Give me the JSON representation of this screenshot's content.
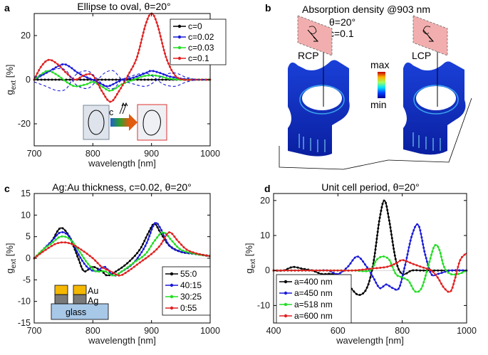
{
  "figure": {
    "panel_b": {
      "letter": "b",
      "title": "Absorption density @903 nm",
      "theta_label": "θ=20°",
      "c_label": "c=0.1",
      "rcp_label": "RCP",
      "lcp_label": "LCP",
      "colorbar_max": "max",
      "colorbar_min": "min"
    }
  },
  "chart_data": [
    {
      "letter": "a",
      "type": "line",
      "title": "Ellipse to oval, θ=20°",
      "xlabel": "wavelength [nm]",
      "ylabel": "g",
      "ylabel_sub": "ext",
      "ylabel_unit": " [%]",
      "xlim": [
        700,
        1000
      ],
      "ylim": [
        -30,
        30
      ],
      "xticks": [
        700,
        800,
        900,
        1000
      ],
      "yticks": [
        -20,
        0,
        20
      ],
      "legend_position": "top-right",
      "series": [
        {
          "name": "c=0",
          "color": "#000000",
          "marker": true,
          "x": [
            700,
            725,
            750,
            775,
            800,
            825,
            850,
            875,
            900,
            925,
            950,
            975,
            1000
          ],
          "y": [
            0,
            0,
            0,
            0,
            0,
            0,
            0,
            0,
            0,
            0,
            0,
            0,
            0
          ]
        },
        {
          "name": "c=0.02",
          "color": "#1a1ad9",
          "marker": true,
          "x": [
            700,
            720,
            740,
            750,
            760,
            775,
            790,
            800,
            815,
            825,
            835,
            850,
            870,
            890,
            900,
            915,
            930,
            950,
            975,
            1000
          ],
          "y": [
            0,
            3,
            6,
            7,
            6,
            3,
            1,
            0,
            -2,
            -3,
            -2,
            0,
            1,
            3,
            4,
            3,
            1.5,
            0.5,
            0,
            0
          ]
        },
        {
          "name": "c=0.03",
          "color": "#22dd22",
          "marker": true,
          "x": [
            700,
            715,
            725,
            740,
            755,
            770,
            790,
            800,
            815,
            830,
            850,
            870,
            885,
            900,
            915,
            930,
            950,
            975,
            1000
          ],
          "y": [
            0,
            3,
            4,
            2,
            -1,
            -3,
            -2,
            -1,
            -3,
            -5,
            -2,
            0,
            1.5,
            2,
            1.5,
            0.5,
            0,
            0,
            0
          ]
        },
        {
          "name": "c=0.1",
          "color": "#e02020",
          "marker": true,
          "x": [
            700,
            712,
            725,
            740,
            755,
            770,
            785,
            800,
            815,
            830,
            845,
            860,
            875,
            890,
            900,
            910,
            925,
            940,
            955,
            975,
            1000
          ],
          "y": [
            0,
            6,
            9,
            7,
            3,
            0,
            2,
            2,
            -5,
            -10,
            -5,
            2,
            10,
            25,
            30,
            25,
            10,
            2,
            0,
            0,
            0
          ]
        },
        {
          "name": "",
          "color": "#1a1ad9",
          "marker": false,
          "dashed": true,
          "x": [
            700,
            720,
            740,
            755,
            770,
            790,
            805,
            820,
            835,
            850,
            870,
            890,
            905,
            920,
            940,
            960,
            980,
            1000
          ],
          "y": [
            -1,
            -3,
            -5,
            -4,
            2,
            4,
            1,
            -3,
            -4,
            0,
            2,
            3,
            1,
            -2,
            -3,
            -1,
            0,
            0
          ]
        },
        {
          "name": "",
          "color": "#1a1ad9",
          "marker": false,
          "dashed": true,
          "x": [
            700,
            720,
            740,
            755,
            770,
            790,
            805,
            820,
            835,
            850,
            870,
            890,
            905,
            920,
            940,
            960,
            980,
            1000
          ],
          "y": [
            1,
            3,
            5,
            4,
            -2,
            -4,
            -1,
            3,
            4,
            0,
            -2,
            -3,
            -1,
            2,
            3,
            1,
            0,
            0
          ]
        }
      ],
      "inset": {
        "arrow_label": "c"
      }
    },
    {
      "letter": "c",
      "type": "line",
      "title": "Ag:Au thickness, c=0.02, θ=20°",
      "xlabel": "wavelength [nm]",
      "ylabel": "g",
      "ylabel_sub": "ext",
      "ylabel_unit": " [%]",
      "xlim": [
        700,
        1000
      ],
      "ylim": [
        -15,
        15
      ],
      "xticks": [
        700,
        800,
        900,
        1000
      ],
      "yticks": [
        -15,
        -10,
        -5,
        0,
        5,
        10,
        15
      ],
      "legend_position": "bottom-right",
      "series": [
        {
          "name": "55:0",
          "color": "#000000",
          "marker": true,
          "x": [
            700,
            715,
            730,
            745,
            760,
            775,
            785,
            800,
            815,
            825,
            840,
            860,
            880,
            895,
            905,
            915,
            930,
            950,
            975,
            1000
          ],
          "y": [
            0,
            2,
            4,
            7,
            5,
            0,
            -3,
            -2,
            -3,
            -4,
            -3,
            -1,
            2,
            6,
            8,
            6,
            3,
            1.5,
            1,
            0.5
          ]
        },
        {
          "name": "40:15",
          "color": "#1a1ad9",
          "marker": true,
          "x": [
            700,
            715,
            730,
            745,
            760,
            775,
            790,
            805,
            820,
            835,
            850,
            870,
            890,
            905,
            915,
            930,
            950,
            975,
            1000
          ],
          "y": [
            0,
            2,
            4,
            6,
            5,
            1,
            -2,
            -3,
            -2,
            -4,
            -3,
            -1,
            3,
            8,
            7,
            3,
            1.5,
            1,
            0.5
          ]
        },
        {
          "name": "30:25",
          "color": "#22dd22",
          "marker": true,
          "x": [
            700,
            715,
            730,
            745,
            760,
            775,
            790,
            805,
            820,
            835,
            850,
            870,
            890,
            905,
            920,
            935,
            950,
            975,
            1000
          ],
          "y": [
            0,
            2,
            3.5,
            5,
            4.5,
            2,
            -1,
            -3,
            -3,
            -4,
            -3,
            -1,
            1,
            4,
            6,
            4,
            2,
            1,
            0.5
          ]
        },
        {
          "name": "0:55",
          "color": "#e02020",
          "marker": true,
          "x": [
            700,
            720,
            740,
            760,
            780,
            800,
            815,
            830,
            845,
            860,
            880,
            900,
            915,
            930,
            945,
            960,
            980,
            1000
          ],
          "y": [
            0,
            2,
            3.5,
            3.5,
            2,
            0,
            -2,
            -3,
            -4,
            -3,
            -1,
            1,
            3,
            6,
            4,
            2,
            1,
            0.5
          ]
        }
      ],
      "inset": {
        "au_label": "Au",
        "ag_label": "Ag",
        "glass_label": "glass"
      }
    },
    {
      "letter": "d",
      "type": "line",
      "title": "Unit cell period, θ=20°",
      "xlabel": "wavelength [nm]",
      "ylabel": "g",
      "ylabel_sub": "ext",
      "ylabel_unit": " [%]",
      "xlim": [
        400,
        1000
      ],
      "ylim": [
        -15,
        22
      ],
      "xticks": [
        400,
        600,
        800,
        1000
      ],
      "yticks": [
        -10,
        0,
        10,
        20
      ],
      "legend_position": "bottom-left",
      "series": [
        {
          "name": "a=400 nm",
          "color": "#000000",
          "marker": true,
          "x": [
            400,
            430,
            460,
            490,
            520,
            550,
            580,
            610,
            640,
            665,
            690,
            710,
            730,
            745,
            760,
            780,
            800,
            830,
            860,
            900,
            950,
            1000
          ],
          "y": [
            0,
            0,
            1,
            0.5,
            0,
            -1,
            -1,
            -2,
            -5,
            -7,
            -5,
            2,
            15,
            20,
            14,
            3,
            -1,
            0,
            0,
            0,
            0,
            0
          ]
        },
        {
          "name": "a=450 nm",
          "color": "#1a1ad9",
          "marker": true,
          "x": [
            400,
            450,
            500,
            540,
            570,
            600,
            630,
            660,
            690,
            710,
            730,
            750,
            770,
            790,
            810,
            830,
            850,
            870,
            890,
            910,
            950,
            1000
          ],
          "y": [
            0,
            0,
            0,
            0,
            0,
            -1,
            1,
            4,
            1,
            -2,
            -5,
            -4,
            -5,
            -5,
            2,
            10,
            13,
            5,
            -1,
            -1,
            0,
            0
          ]
        },
        {
          "name": "a=518 nm",
          "color": "#22dd22",
          "marker": true,
          "x": [
            400,
            450,
            500,
            550,
            600,
            650,
            700,
            720,
            740,
            760,
            780,
            800,
            820,
            840,
            860,
            880,
            900,
            915,
            930,
            950,
            975,
            1000
          ],
          "y": [
            0,
            0,
            0,
            0,
            0,
            0,
            0,
            3,
            4,
            3,
            -1,
            -2,
            -3,
            -6,
            -5,
            1,
            7,
            6,
            1,
            -1,
            -1,
            0
          ]
        },
        {
          "name": "a=600 nm",
          "color": "#e02020",
          "marker": true,
          "x": [
            400,
            450,
            500,
            550,
            600,
            650,
            700,
            750,
            780,
            800,
            830,
            860,
            890,
            910,
            930,
            950,
            965,
            980,
            1000
          ],
          "y": [
            0,
            0,
            0,
            0,
            0,
            0,
            0.5,
            1,
            2,
            3,
            2,
            1,
            0,
            -2,
            -5,
            -6,
            -2,
            3,
            5
          ]
        }
      ]
    }
  ]
}
